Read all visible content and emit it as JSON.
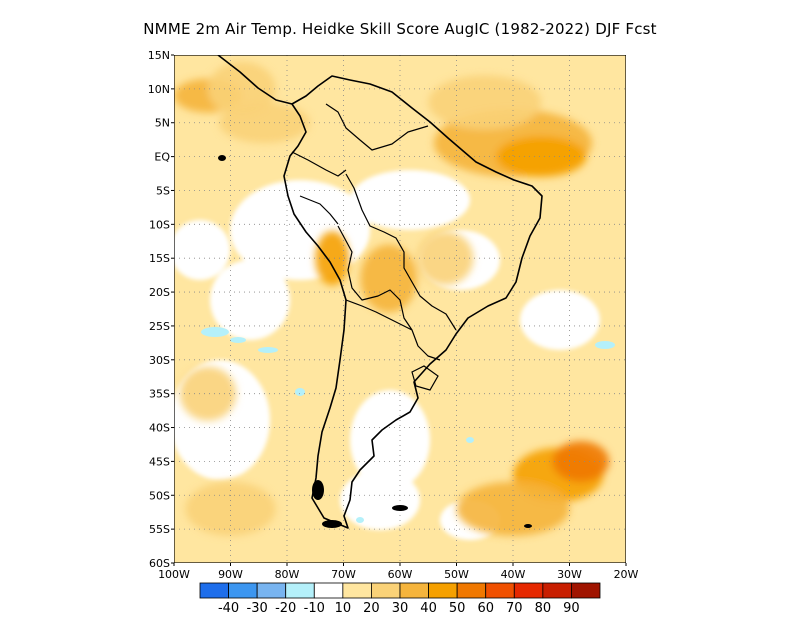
{
  "title": "NMME  2m Air Temp. Heidke Skill Score AugIC (1982-2022) DJF Fcst",
  "map": {
    "lon_range": [
      -100,
      -20
    ],
    "lat_range": [
      -60,
      15
    ],
    "lat_ticks": [
      {
        "value": 15,
        "label": "15N"
      },
      {
        "value": 10,
        "label": "10N"
      },
      {
        "value": 5,
        "label": "5N"
      },
      {
        "value": 0,
        "label": "EQ"
      },
      {
        "value": -5,
        "label": "5S"
      },
      {
        "value": -10,
        "label": "10S"
      },
      {
        "value": -15,
        "label": "15S"
      },
      {
        "value": -20,
        "label": "20S"
      },
      {
        "value": -25,
        "label": "25S"
      },
      {
        "value": -30,
        "label": "30S"
      },
      {
        "value": -35,
        "label": "35S"
      },
      {
        "value": -40,
        "label": "40S"
      },
      {
        "value": -45,
        "label": "45S"
      },
      {
        "value": -50,
        "label": "50S"
      },
      {
        "value": -55,
        "label": "55S"
      },
      {
        "value": -60,
        "label": "60S"
      }
    ],
    "lon_ticks": [
      {
        "value": -100,
        "label": "100W"
      },
      {
        "value": -90,
        "label": "90W"
      },
      {
        "value": -80,
        "label": "80W"
      },
      {
        "value": -70,
        "label": "70W"
      },
      {
        "value": -60,
        "label": "60W"
      },
      {
        "value": -50,
        "label": "50W"
      },
      {
        "value": -40,
        "label": "40W"
      },
      {
        "value": -30,
        "label": "30W"
      },
      {
        "value": -20,
        "label": "20W"
      }
    ],
    "grid": "dotted",
    "skill_regions": [
      {
        "lon": -94,
        "lat": 9,
        "rx": 6,
        "ry": 2.5,
        "level": 30
      },
      {
        "lon": -88,
        "lat": 10,
        "rx": 6,
        "ry": 4,
        "level": 20
      },
      {
        "lon": -84,
        "lat": 5,
        "rx": 8,
        "ry": 3,
        "level": 20
      },
      {
        "lon": -40,
        "lat": 2,
        "rx": 14,
        "ry": 5,
        "level": 30
      },
      {
        "lon": -35,
        "lat": 0,
        "rx": 8,
        "ry": 3,
        "level": 40
      },
      {
        "lon": -45,
        "lat": 8,
        "rx": 10,
        "ry": 4,
        "level": 20
      },
      {
        "lon": -72,
        "lat": -15,
        "rx": 3,
        "ry": 4,
        "level": 40
      },
      {
        "lon": -62,
        "lat": -18,
        "rx": 5,
        "ry": 5,
        "level": 30
      },
      {
        "lon": -52,
        "lat": -15,
        "rx": 5,
        "ry": 4,
        "level": 20
      },
      {
        "lon": -32,
        "lat": -47,
        "rx": 8,
        "ry": 4,
        "level": 40
      },
      {
        "lon": -28,
        "lat": -45,
        "rx": 5,
        "ry": 3,
        "level": 50
      },
      {
        "lon": -40,
        "lat": -52,
        "rx": 10,
        "ry": 4,
        "level": 30
      },
      {
        "lon": -94,
        "lat": -35,
        "rx": 5,
        "ry": 4,
        "level": 20
      },
      {
        "lon": -90,
        "lat": -52,
        "rx": 8,
        "ry": 4,
        "level": 20
      }
    ]
  },
  "colorbar": {
    "bins": [
      {
        "color": "#1e6eeb"
      },
      {
        "color": "#3c96f0"
      },
      {
        "color": "#78b4f0"
      },
      {
        "color": "#b4f0fa"
      },
      {
        "color": "#ffffff"
      },
      {
        "color": "#ffe6a0"
      },
      {
        "color": "#fad278"
      },
      {
        "color": "#f5b43c"
      },
      {
        "color": "#f5a000"
      },
      {
        "color": "#f07800"
      },
      {
        "color": "#f05000"
      },
      {
        "color": "#e62800"
      },
      {
        "color": "#c81e00"
      },
      {
        "color": "#a01400"
      }
    ],
    "labels": [
      "-40",
      "-30",
      "-20",
      "-10",
      "10",
      "20",
      "30",
      "40",
      "50",
      "60",
      "70",
      "80",
      "90"
    ]
  }
}
